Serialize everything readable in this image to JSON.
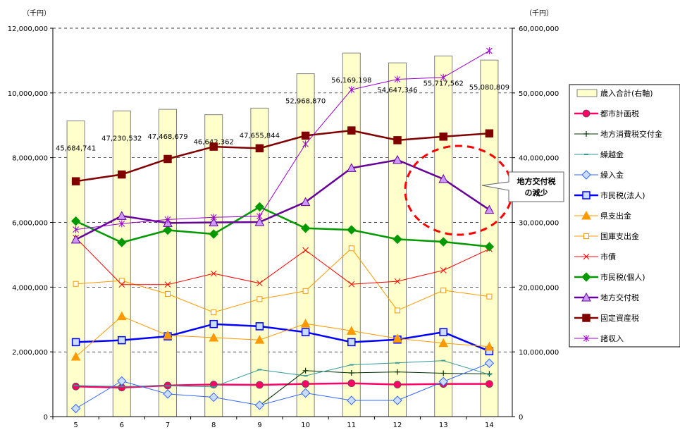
{
  "chart_data": {
    "type": "bar+line",
    "left_unit": "（千円）",
    "right_unit": "（千円）",
    "categories": [
      "5",
      "6",
      "7",
      "8",
      "9",
      "10",
      "11",
      "12",
      "13",
      "14"
    ],
    "left_axis": {
      "ylim": [
        0,
        12000000
      ],
      "ticks": [
        "0",
        "2,000,000",
        "4,000,000",
        "6,000,000",
        "8,000,000",
        "10,000,000",
        "12,000,000"
      ]
    },
    "right_axis": {
      "ylim": [
        0,
        60000000
      ],
      "ticks": [
        "0",
        "10,000,000",
        "20,000,000",
        "30,000,000",
        "40,000,000",
        "50,000,000",
        "60,000,000"
      ]
    },
    "bar_series": {
      "name": "歳入合計(右軸)",
      "color": "#FFFFCC",
      "values": [
        45684741,
        47230532,
        47468679,
        46642362,
        47655844,
        52968870,
        56169198,
        54647346,
        55717562,
        55080809
      ],
      "labels": [
        "45,684,741",
        "47,230,532",
        "47,468,679",
        "46,642,362",
        "47,655,844",
        "52,968,870",
        "56,169,198",
        "54,647,346",
        "55,717,562",
        "55,080,809"
      ]
    },
    "line_series": [
      {
        "name": "都市計画税",
        "color": "#FF0066",
        "marker": "circle",
        "width": 2.5,
        "values": [
          930000,
          900000,
          960000,
          990000,
          980000,
          1010000,
          1030000,
          990000,
          1010000,
          1010000
        ]
      },
      {
        "name": "地方消費税交付金",
        "color": "#003300",
        "marker": "plus",
        "width": 1,
        "values": [
          null,
          null,
          null,
          null,
          340000,
          1420000,
          1350000,
          1380000,
          1340000,
          1320000
        ]
      },
      {
        "name": "繰越金",
        "color": "#339999",
        "marker": "dash",
        "width": 1,
        "values": [
          960000,
          930000,
          950000,
          920000,
          1450000,
          1260000,
          1600000,
          1660000,
          1730000,
          1300000
        ]
      },
      {
        "name": "繰入金",
        "color": "#3366FF",
        "marker": "diamond",
        "width": 1,
        "values": [
          250000,
          1100000,
          700000,
          600000,
          350000,
          730000,
          500000,
          500000,
          1080000,
          1650000
        ]
      },
      {
        "name": "市民税(法人)",
        "color": "#0000FF",
        "marker": "square",
        "width": 2.5,
        "values": [
          2300000,
          2360000,
          2480000,
          2860000,
          2790000,
          2610000,
          2300000,
          2380000,
          2610000,
          2020000
        ]
      },
      {
        "name": "県支出金",
        "color": "#FF9900",
        "marker": "triangle",
        "width": 1,
        "values": [
          1850000,
          3100000,
          2510000,
          2440000,
          2370000,
          2870000,
          2650000,
          2410000,
          2270000,
          2160000
        ]
      },
      {
        "name": "国庫支出金",
        "color": "#FF9900",
        "marker": "square-open",
        "width": 1,
        "values": [
          4100000,
          4200000,
          3790000,
          3220000,
          3630000,
          3880000,
          5200000,
          3280000,
          3900000,
          3710000
        ]
      },
      {
        "name": "市債",
        "color": "#FF0000",
        "marker": "cross",
        "width": 1,
        "values": [
          5520000,
          4080000,
          4080000,
          4420000,
          4120000,
          5140000,
          4090000,
          4180000,
          4520000,
          5180000
        ]
      },
      {
        "name": "市民税(個人)",
        "color": "#009900",
        "marker": "diamond",
        "width": 2.5,
        "values": [
          6040000,
          5380000,
          5760000,
          5640000,
          6480000,
          5820000,
          5770000,
          5480000,
          5400000,
          5250000
        ]
      },
      {
        "name": "地方交付税",
        "color": "#660099",
        "marker": "triangle",
        "width": 2.5,
        "values": [
          5470000,
          6200000,
          5980000,
          6000000,
          6010000,
          6630000,
          7680000,
          7930000,
          7340000,
          6390000
        ]
      },
      {
        "name": "固定資産税",
        "color": "#800000",
        "marker": "square",
        "width": 2.5,
        "values": [
          7270000,
          7480000,
          7960000,
          8340000,
          8290000,
          8680000,
          8840000,
          8540000,
          8650000,
          8750000
        ]
      },
      {
        "name": "諸収入",
        "color": "#9900CC",
        "marker": "asterisk",
        "width": 1,
        "values": [
          5780000,
          5960000,
          6090000,
          6160000,
          6190000,
          8420000,
          10100000,
          10420000,
          10480000,
          11300000
        ]
      }
    ],
    "annotation": {
      "text_line1": "地方交付税",
      "text_line2": "の減少",
      "highlight": "dashed-red-ellipse"
    },
    "grid": "dashed horizontal",
    "legend_position": "right"
  }
}
